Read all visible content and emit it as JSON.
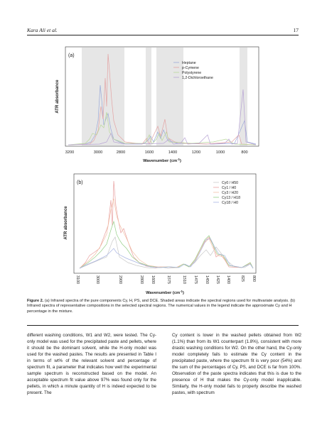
{
  "header": {
    "running_head": "Kara Ali et al.",
    "page_number": "17"
  },
  "figure": {
    "panel_a": {
      "label": "(a)",
      "ylabel": "ATR absorbance",
      "xlabel_main": "Wavenumber (cm",
      "xlabel_sup": "-1",
      "xlabel_tail": ")",
      "ticks": [
        "3200",
        "3000",
        "2800",
        "1600",
        "1400",
        "1200",
        "1000",
        "800"
      ],
      "legend": [
        "Heptane",
        "p-Cymene",
        "Polystyrene",
        "1,2-Dichloroethane"
      ],
      "colors": [
        "#9aa9d8",
        "#e3a3a3",
        "#b9d79a",
        "#b7a3d4"
      ]
    },
    "panel_b": {
      "label": "(b)",
      "ylabel": "ATR absorbance",
      "xlabel_main": "Wavenumber (cm",
      "xlabel_sup": "-1",
      "xlabel_tail": ")",
      "ticks": [
        "3100",
        "3000",
        "2900",
        "2800",
        "1600",
        "1575",
        "1510",
        "1475",
        "1450",
        "1425",
        "1400",
        "825",
        "800"
      ],
      "legend": [
        "Cy0 / H50",
        "Cy1 / H0",
        "Cy3 / H20",
        "Cy13 / H18",
        "Cy18 / H0"
      ],
      "colors": [
        "#c9c9c9",
        "#e8a0a0",
        "#f2c1a6",
        "#96cf88",
        "#a8b4e2"
      ]
    }
  },
  "caption": {
    "label": "Figure 2.",
    "text": "(a) Infrared spectra of the pure components Cy, H, PS, and DCE. Shaded areas indicate the spectral regions used for multivariate analysis. (b) Infrared spectra of representative compositions in the selected spectral regions. The numerical values in the legend indicate the approximate Cy and H percentage in the mixture."
  },
  "body": {
    "left": "different washing conditions, W1 and W2, were tested. The Cy-only model was used for the precipitated paste and pellets, where it should be the dominant solvent, while the H-only model was used for the washed pastes. The results are presented in Table I in terms of wt% of the relevant solvent and percentage of spectrum fit, a parameter that indicates how well the experimental sample spectrum is reconstructed based on the model. An acceptable spectrum fit value above 97% was found only for the pellets, in which a minute quantity of H is indeed expected to be present. The",
    "right": "Cy content is lower in the washed pellets obtained from W2 (1.1%) than from its W1 counterpart (1.8%), consistent with more drastic washing conditions for W2. On the other hand, the Cy-only model completely fails to estimate the Cy content in the precipitated paste, where the spectrum fit is very poor (54%) and the sum of the percentages of Cy, PS, and DCE is far from 100%. Observation of the paste spectra indicates that this is due to the presence of H that makes the Cy-only model inapplicable. Similarly, the H-only model fails to properly describe the washed pastes, with spectrum"
  }
}
